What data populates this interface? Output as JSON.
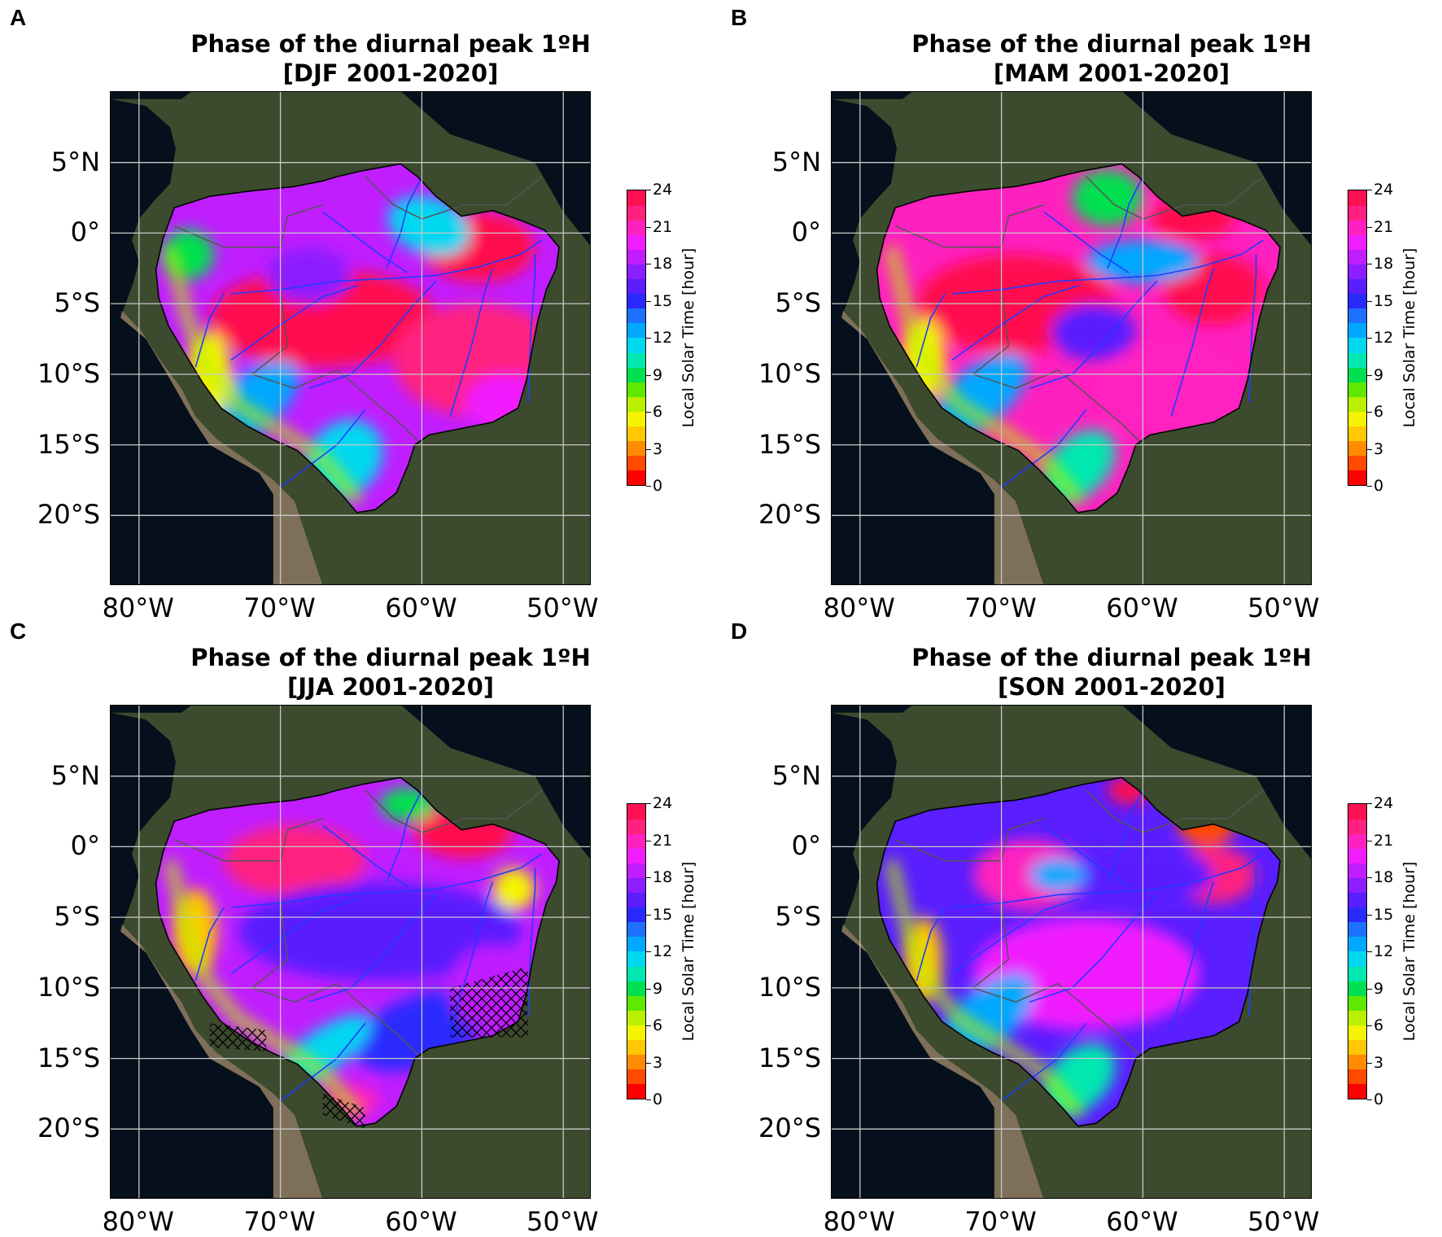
{
  "figure": {
    "panels": [
      {
        "label": "A",
        "title_line1": "Phase of the diurnal peak 1ºH",
        "title_line2": "[DJF 2001-2020]",
        "season": "DJF"
      },
      {
        "label": "B",
        "title_line1": "Phase of the diurnal peak 1ºH",
        "title_line2": "[MAM 2001-2020]",
        "season": "MAM"
      },
      {
        "label": "C",
        "title_line1": "Phase of the diurnal peak 1ºH",
        "title_line2": "[JJA 2001-2020]",
        "season": "JJA"
      },
      {
        "label": "D",
        "title_line1": "Phase of the diurnal peak 1ºH",
        "title_line2": "[SON 2001-2020]",
        "season": "SON"
      }
    ],
    "lat_ticks": [
      "5°N",
      "0°",
      "5°S",
      "10°S",
      "15°S",
      "20°S"
    ],
    "lon_ticks": [
      "80°W",
      "70°W",
      "60°W",
      "50°W"
    ],
    "colorbar": {
      "label": "Local Solar Time [hour]",
      "ticks": [
        "0",
        "3",
        "6",
        "9",
        "12",
        "15",
        "18",
        "21",
        "24"
      ],
      "range": [
        0,
        24
      ],
      "colors": [
        "#ff0000",
        "#ff4a00",
        "#ff8c00",
        "#ffc800",
        "#f4f400",
        "#b8f000",
        "#60e800",
        "#00e050",
        "#00e8b0",
        "#00d8f0",
        "#00a8ff",
        "#1e70ff",
        "#2a2aff",
        "#5a1eff",
        "#8c1eff",
        "#c01eff",
        "#f01eff",
        "#ff20c0",
        "#ff2080",
        "#ff1050"
      ]
    },
    "map_colors": {
      "ocean": "#06101c",
      "land": "#3c4a2e",
      "andes": "#8a7560",
      "grid": "#c8c8c8",
      "rivers": "#1f3cff",
      "borders": "#555555"
    }
  }
}
